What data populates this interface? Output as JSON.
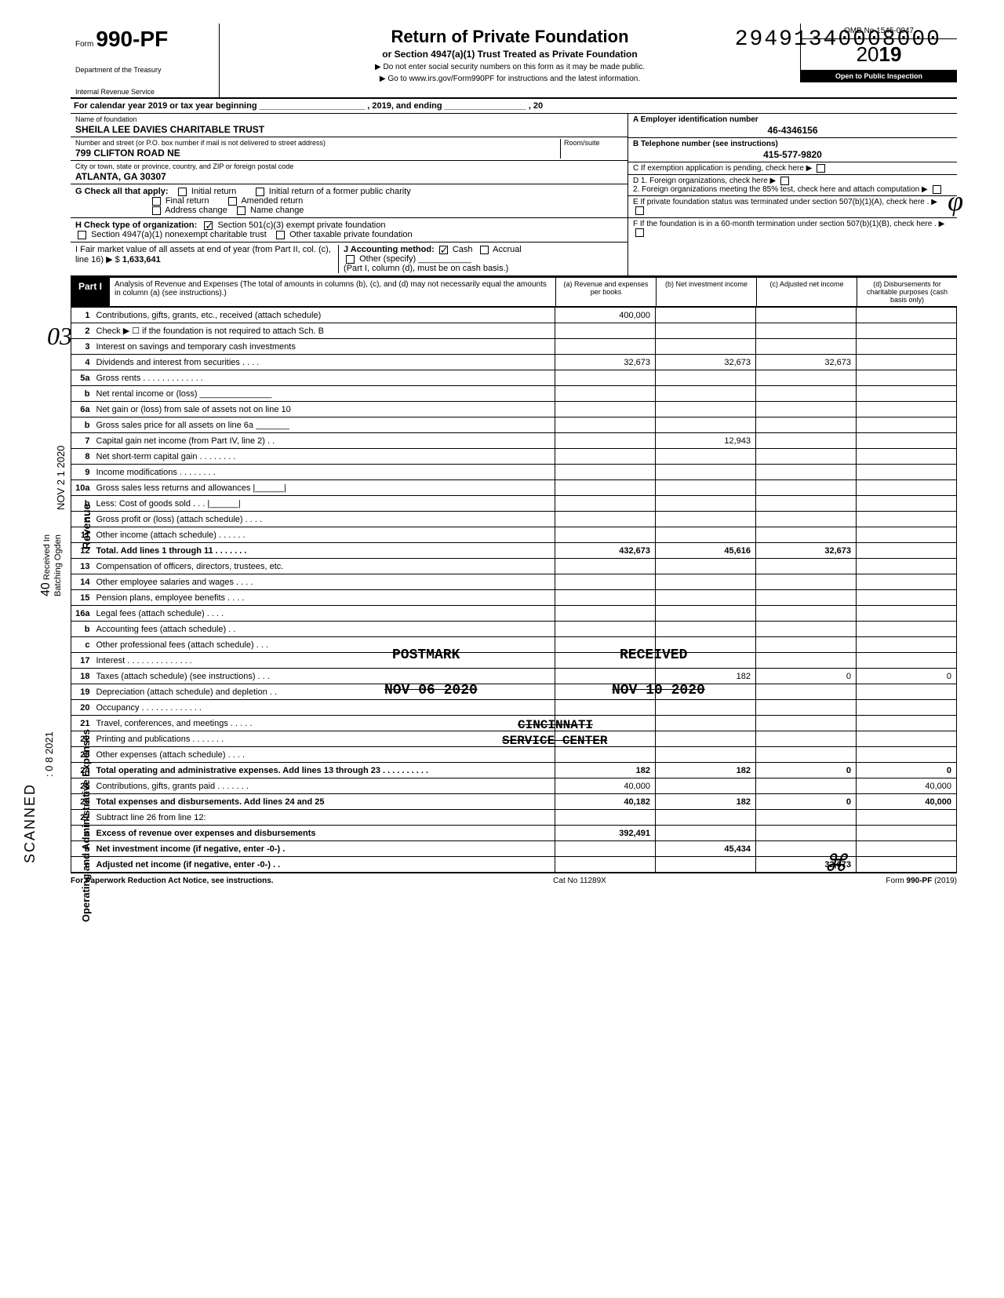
{
  "stamp_number": "29491340008000",
  "header": {
    "form_word": "Form",
    "form_number": "990-PF",
    "dept1": "Department of the Treasury",
    "dept2": "Internal Revenue Service",
    "title": "Return of Private Foundation",
    "subtitle": "or Section 4947(a)(1) Trust Treated as Private Foundation",
    "note1": "▶ Do not enter social security numbers on this form as it may be made public.",
    "note2": "▶ Go to www.irs.gov/Form990PF for instructions and the latest information.",
    "omb": "OMB No 1545-0047",
    "year_prefix": "20",
    "year_bold": "19",
    "inspection": "Open to Public Inspection"
  },
  "cal_year": "For calendar year 2019 or tax year beginning ______________________ , 2019, and ending _________________ , 20",
  "foundation": {
    "name_label": "Name of foundation",
    "name": "SHEILA LEE DAVIES CHARITABLE TRUST",
    "addr_label": "Number and street (or P.O. box number if mail is not delivered to street address)",
    "addr": "799 CLIFTON ROAD NE",
    "room_label": "Room/suite",
    "city_label": "City or town, state or province, country, and ZIP or foreign postal code",
    "city": "ATLANTA, GA 30307"
  },
  "right_info": {
    "a_label": "A  Employer identification number",
    "a_val": "46-4346156",
    "b_label": "B  Telephone number (see instructions)",
    "b_val": "415-577-9820",
    "c_label": "C  If exemption application is pending, check here ▶",
    "d1": "D  1. Foreign organizations, check here",
    "d2": "2. Foreign organizations meeting the 85% test, check here and attach computation",
    "e": "E  If private foundation status was terminated under section 507(b)(1)(A), check here",
    "f": "F  If the foundation is in a 60-month termination under section 507(b)(1)(B), check here"
  },
  "g": {
    "label": "G  Check all that apply:",
    "opts": [
      "Initial return",
      "Initial return of a former public charity",
      "Final return",
      "Amended return",
      "Address change",
      "Name change"
    ]
  },
  "h": {
    "label": "H  Check type of organization:",
    "opt1": "Section 501(c)(3) exempt private foundation",
    "opt2": "Section 4947(a)(1) nonexempt charitable trust",
    "opt3": "Other taxable private foundation"
  },
  "i": {
    "label": "I   Fair market value of all assets at end of year (from Part II, col. (c), line 16) ▶ $",
    "val": "1,633,641"
  },
  "j": {
    "label": "J   Accounting method:",
    "cash": "Cash",
    "accrual": "Accrual",
    "other": "Other (specify)",
    "note": "(Part I, column (d), must be on cash basis.)"
  },
  "part1": {
    "label": "Part I",
    "desc": "Analysis of Revenue and Expenses (The total of amounts in columns (b), (c), and (d) may not necessarily equal the amounts in column (a) (see instructions).)",
    "col_a": "(a) Revenue and expenses per books",
    "col_b": "(b) Net investment income",
    "col_c": "(c) Adjusted net income",
    "col_d": "(d) Disbursements for charitable purposes (cash basis only)"
  },
  "lines": {
    "l1": {
      "n": "1",
      "d": "Contributions, gifts, grants, etc., received (attach schedule)",
      "a": "400,000"
    },
    "l2": {
      "n": "2",
      "d": "Check ▶ ☐ if the foundation is not required to attach Sch. B"
    },
    "l3": {
      "n": "3",
      "d": "Interest on savings and temporary cash investments"
    },
    "l4": {
      "n": "4",
      "d": "Dividends and interest from securities  .  .  .  .",
      "a": "32,673",
      "b": "32,673",
      "c": "32,673"
    },
    "l5a": {
      "n": "5a",
      "d": "Gross rents  .  .  .  .  .  .  .  .  .  .  .  .  ."
    },
    "l5b": {
      "n": "b",
      "d": "Net rental income or (loss) _______________"
    },
    "l6a": {
      "n": "6a",
      "d": "Net gain or (loss) from sale of assets not on line 10"
    },
    "l6b": {
      "n": "b",
      "d": "Gross sales price for all assets on line 6a _______"
    },
    "l7": {
      "n": "7",
      "d": "Capital gain net income (from Part IV, line 2)  .  .",
      "b": "12,943"
    },
    "l8": {
      "n": "8",
      "d": "Net short-term capital gain  .  .  .  .  .  .  .  ."
    },
    "l9": {
      "n": "9",
      "d": "Income modifications   .  .  .  .  .  .  .  ."
    },
    "l10a": {
      "n": "10a",
      "d": "Gross sales less returns and allowances |______|"
    },
    "l10b": {
      "n": "b",
      "d": "Less: Cost of goods sold    .   .   . |______|"
    },
    "l10c": {
      "n": "c",
      "d": "Gross profit or (loss) (attach schedule)  .  .  .  ."
    },
    "l11": {
      "n": "11",
      "d": "Other income (attach schedule)   .  .  .  .  .  ."
    },
    "l12": {
      "n": "12",
      "d": "Total. Add lines 1 through 11  .  .  .  .  .  .  .",
      "a": "432,673",
      "b": "45,616",
      "c": "32,673",
      "bold": true
    },
    "l13": {
      "n": "13",
      "d": "Compensation of officers, directors, trustees, etc."
    },
    "l14": {
      "n": "14",
      "d": "Other employee salaries and wages .  .  .  ."
    },
    "l15": {
      "n": "15",
      "d": "Pension plans, employee benefits   .  .  .  ."
    },
    "l16a": {
      "n": "16a",
      "d": "Legal fees (attach schedule)  .  .  .  ."
    },
    "l16b": {
      "n": "b",
      "d": "Accounting fees (attach schedule)   .  ."
    },
    "l16c": {
      "n": "c",
      "d": "Other professional fees (attach schedule)  .  .  ."
    },
    "l17": {
      "n": "17",
      "d": "Interest  .  .  .  .  .  .  .  .  .  .  .  .  .  ."
    },
    "l18": {
      "n": "18",
      "d": "Taxes (attach schedule) (see instructions)  .  .  .",
      "b": "182",
      "c": "0",
      "dd": "0"
    },
    "l19": {
      "n": "19",
      "d": "Depreciation (attach schedule) and depletion  .  ."
    },
    "l20": {
      "n": "20",
      "d": "Occupancy .  .  .  .  .  .  .  .  .  .  .  .  ."
    },
    "l21": {
      "n": "21",
      "d": "Travel, conferences, and meetings  .  .  .  .  ."
    },
    "l22": {
      "n": "22",
      "d": "Printing and publications   .  .  .  .  .  .  ."
    },
    "l23": {
      "n": "23",
      "d": "Other expenses (attach schedule)   .  .  .  ."
    },
    "l24": {
      "n": "24",
      "d": "Total operating and administrative expenses. Add lines 13 through 23 .  .  .  .  .  .  .  .  .  .",
      "a": "182",
      "b": "182",
      "c": "0",
      "dd": "0",
      "bold": true
    },
    "l25": {
      "n": "25",
      "d": "Contributions, gifts, grants paid  .  .  .  .  .  .  .",
      "a": "40,000",
      "dd": "40,000"
    },
    "l26": {
      "n": "26",
      "d": "Total expenses and disbursements. Add lines 24 and 25",
      "a": "40,182",
      "b": "182",
      "c": "0",
      "dd": "40,000",
      "bold": true
    },
    "l27": {
      "n": "27",
      "d": "Subtract line 26 from line 12:"
    },
    "l27a": {
      "n": "a",
      "d": "Excess of revenue over expenses and disbursements",
      "a": "392,491",
      "bold": true
    },
    "l27b": {
      "n": "b",
      "d": "Net investment income (if negative, enter -0-)  .",
      "b": "45,434",
      "bold": true
    },
    "l27c": {
      "n": "c",
      "d": "Adjusted net income (if negative, enter -0-)  .  .",
      "c": "32,673",
      "bold": true
    }
  },
  "stamps": {
    "postmark": "POSTMARK",
    "received": "RECEIVED",
    "nov": "NOV 06 2020",
    "nov2": "NOV 10 2020",
    "cincinnati": "CINCINNATI",
    "service": "SERVICE CENTER",
    "amt182": "182"
  },
  "side": {
    "revenue": "Revenue",
    "opex": "Operating and Administrative Expenses",
    "scanned": "SCANNED",
    "date2021": ":  0 8 2021",
    "received40": "Received In\nBatching Ogden",
    "forty": "40",
    "nov2020": "NOV 2 1 2020"
  },
  "footer": {
    "left": "For Paperwork Reduction Act Notice, see instructions.",
    "mid": "Cat No 11289X",
    "right": "Form 990-PF (2019)"
  }
}
